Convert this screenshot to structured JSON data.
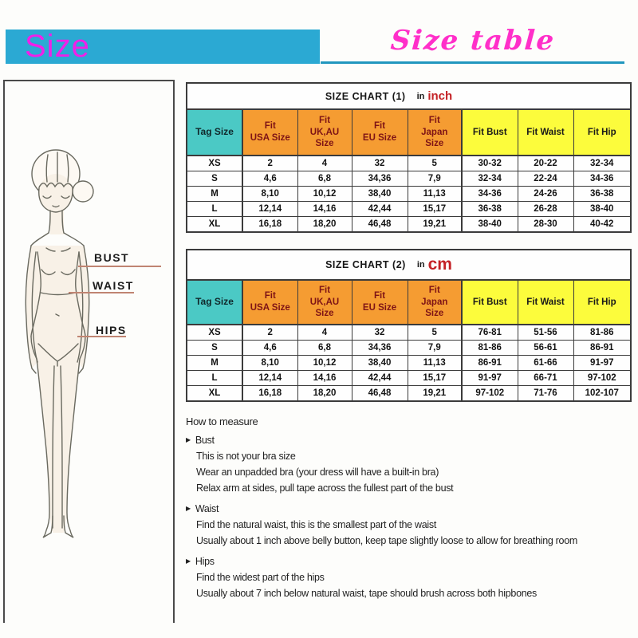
{
  "banner": {
    "size_label": "Size",
    "size_table_label": "Size table"
  },
  "figure": {
    "bust_label": "BUST",
    "waist_label": "WAIST",
    "hips_label": "HIPS"
  },
  "tables": [
    {
      "title": "SIZE CHART (1)",
      "unit_prefix": "in",
      "unit": "inch",
      "columns": [
        "Tag Size",
        "Fit\nUSA Size",
        "Fit\nUK,AU\nSize",
        "Fit\nEU Size",
        "Fit\nJapan\nSize",
        "Fit Bust",
        "Fit Waist",
        "Fit Hip"
      ],
      "rows": [
        {
          "cells": [
            "XS",
            "2",
            "4",
            "32",
            "5",
            "30-32",
            "20-22",
            "32-34"
          ]
        },
        {
          "cells": [
            "S",
            "4,6",
            "6,8",
            "34,36",
            "7,9",
            "32-34",
            "22-24",
            "34-36"
          ]
        },
        {
          "cells": [
            "M",
            "8,10",
            "10,12",
            "38,40",
            "11,13",
            "34-36",
            "24-26",
            "36-38"
          ]
        },
        {
          "cells": [
            "L",
            "12,14",
            "14,16",
            "42,44",
            "15,17",
            "36-38",
            "26-28",
            "38-40"
          ]
        },
        {
          "cells": [
            "XL",
            "16,18",
            "18,20",
            "46,48",
            "19,21",
            "38-40",
            "28-30",
            "40-42"
          ]
        }
      ]
    },
    {
      "title": "SIZE CHART (2)",
      "unit_prefix": "in",
      "unit": "cm",
      "columns": [
        "Tag Size",
        "Fit\nUSA Size",
        "Fit\nUK,AU\nSize",
        "Fit\nEU Size",
        "Fit\nJapan\nSize",
        "Fit Bust",
        "Fit Waist",
        "Fit Hip"
      ],
      "rows": [
        {
          "cells": [
            "XS",
            "2",
            "4",
            "32",
            "5",
            "76-81",
            "51-56",
            "81-86"
          ]
        },
        {
          "cells": [
            "S",
            "4,6",
            "6,8",
            "34,36",
            "7,9",
            "81-86",
            "56-61",
            "86-91"
          ]
        },
        {
          "cells": [
            "M",
            "8,10",
            "10,12",
            "38,40",
            "11,13",
            "86-91",
            "61-66",
            "91-97"
          ]
        },
        {
          "cells": [
            "L",
            "12,14",
            "14,16",
            "42,44",
            "15,17",
            "91-97",
            "66-71",
            "97-102"
          ]
        },
        {
          "cells": [
            "XL",
            "16,18",
            "18,20",
            "46,48",
            "19,21",
            "97-102",
            "71-76",
            "102-107"
          ]
        }
      ]
    }
  ],
  "how_to_measure": {
    "heading": "How to measure",
    "bullet_icon": "▶",
    "sections": [
      {
        "title": "Bust",
        "lines": [
          "This is not your bra size",
          "Wear an unpadded bra (your dress will have a built-in bra)",
          "Relax arm at sides, pull tape across the fullest part of the bust"
        ]
      },
      {
        "title": "Waist",
        "lines": [
          "Find the natural waist, this is the smallest part of the waist",
          "Usually about 1 inch above belly button, keep tape slightly loose to allow for breathing room"
        ]
      },
      {
        "title": "Hips",
        "lines": [
          "Find the widest part of the hips",
          "Usually about 7 inch below natural waist, tape should brush across both hipbones"
        ]
      }
    ]
  },
  "colors": {
    "banner_bg": "#2BA9D3",
    "banner_text": "#F020E8",
    "script_text": "#FF2FC9",
    "underline": "#2197BE",
    "tag_header_bg": "#4BC9C5",
    "fit_header_bg": "#F59C32",
    "fit_header_text": "#7E1315",
    "measure_header_bg": "#FCFC3C",
    "unit_text": "#C42126",
    "pointer_line": "#C08472"
  }
}
